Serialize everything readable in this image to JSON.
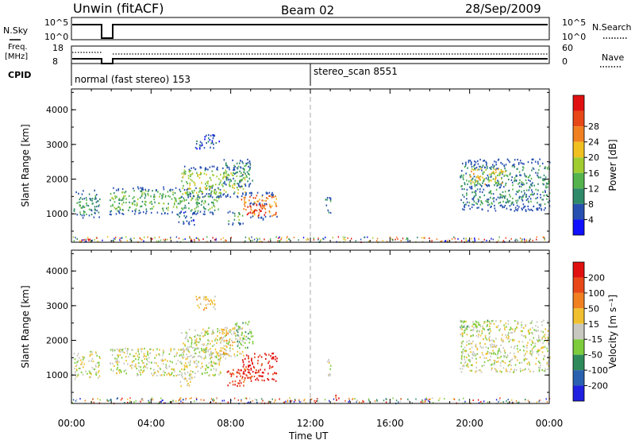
{
  "header": {
    "station": "Unwin (fitACF)",
    "beam": "Beam 02",
    "date": "28/Sep/2009"
  },
  "top_panels": {
    "nsky": {
      "label": "N.Sky",
      "ticks": [
        "10^5",
        "10^0"
      ]
    },
    "nsearch": {
      "label": "N.Search",
      "ticks": [
        "10^5",
        "10^0"
      ]
    },
    "freq": {
      "label_line1": "Freq.",
      "label_line2": "[MHz]",
      "ticks": [
        "18",
        "8"
      ]
    },
    "nave": {
      "label": "Nave",
      "ticks": [
        "60",
        "0"
      ]
    },
    "cpid": {
      "label": "CPID",
      "segments": [
        {
          "label": "normal (fast stereo) 153",
          "start_hr": 0,
          "end_hr": 12
        },
        {
          "label": "stereo_scan 8551",
          "start_hr": 12,
          "end_hr": 24
        }
      ]
    }
  },
  "chart_data": [
    {
      "type": "heatmap",
      "name": "power",
      "ylabel": "Slant Range [km]",
      "xlabel": "",
      "ylim": [
        180,
        4600
      ],
      "yticks": [
        "1000",
        "2000",
        "3000",
        "4000"
      ],
      "xlim_hr": [
        0,
        24
      ],
      "colorbar": {
        "label": "Power [dB]",
        "ticks": [
          "4",
          "8",
          "12",
          "16",
          "20",
          "24",
          "28"
        ],
        "colors": [
          "#1010ff",
          "#2850b0",
          "#2f8a6a",
          "#54b34d",
          "#a0cc30",
          "#f0c020",
          "#f08020",
          "#e84818",
          "#e01010"
        ]
      },
      "regions": [
        {
          "t0": 0.1,
          "t1": 1.4,
          "r0": 900,
          "r1": 1700,
          "level": 2
        },
        {
          "t0": 1.9,
          "t1": 7.5,
          "r0": 1000,
          "r1": 1800,
          "level": 3
        },
        {
          "t0": 5.5,
          "t1": 8.7,
          "r0": 1500,
          "r1": 2400,
          "level": 4
        },
        {
          "t0": 7.6,
          "t1": 9.1,
          "r0": 1800,
          "r1": 2600,
          "level": 2
        },
        {
          "t0": 6.2,
          "t1": 7.4,
          "r0": 2900,
          "r1": 3300,
          "level": 1
        },
        {
          "t0": 5.3,
          "t1": 6.2,
          "r0": 700,
          "r1": 1100,
          "level": 1
        },
        {
          "t0": 7.8,
          "t1": 8.6,
          "r0": 700,
          "r1": 1100,
          "level": 3
        },
        {
          "t0": 8.5,
          "t1": 10.3,
          "r0": 850,
          "r1": 1650,
          "level": 6
        },
        {
          "t0": 8.8,
          "t1": 9.8,
          "r0": 900,
          "r1": 1350,
          "level": 8
        },
        {
          "t0": 12.7,
          "t1": 13.0,
          "r0": 1000,
          "r1": 1500,
          "level": 2
        },
        {
          "t0": 19.5,
          "t1": 24.0,
          "r0": 1100,
          "r1": 2600,
          "level": 2
        },
        {
          "t0": 20.0,
          "t1": 21.8,
          "r0": 1800,
          "r1": 2400,
          "level": 5
        }
      ]
    },
    {
      "type": "heatmap",
      "name": "velocity",
      "ylabel": "Slant Range [km]",
      "xlabel": "Time UT",
      "ylim": [
        180,
        4600
      ],
      "yticks": [
        "1000",
        "2000",
        "3000",
        "4000"
      ],
      "xlim_hr": [
        0,
        24
      ],
      "xticks": [
        "00:00",
        "04:00",
        "08:00",
        "12:00",
        "16:00",
        "20:00",
        "00:00"
      ],
      "colorbar": {
        "label": "Velocity [m s⁻¹]",
        "ticks": [
          "200",
          "100",
          "50",
          "15",
          "-15",
          "-50",
          "-100",
          "-200"
        ],
        "colors": [
          "#2020e0",
          "#2a60b0",
          "#2e8a5a",
          "#7ccc3c",
          "#c8c8c0",
          "#f0c030",
          "#f08020",
          "#e84818",
          "#e01010"
        ]
      },
      "regions": [
        {
          "t0": 0.1,
          "t1": 1.4,
          "r0": 900,
          "r1": 1700,
          "level": 4
        },
        {
          "t0": 1.9,
          "t1": 7.5,
          "r0": 1000,
          "r1": 1800,
          "level": 4
        },
        {
          "t0": 5.5,
          "t1": 8.7,
          "r0": 1500,
          "r1": 2400,
          "level": 4
        },
        {
          "t0": 7.4,
          "t1": 8.2,
          "r0": 1600,
          "r1": 2400,
          "level": 5
        },
        {
          "t0": 8.2,
          "t1": 9.1,
          "r0": 1800,
          "r1": 2600,
          "level": 3
        },
        {
          "t0": 6.2,
          "t1": 7.4,
          "r0": 2900,
          "r1": 3300,
          "level": 5
        },
        {
          "t0": 5.3,
          "t1": 6.2,
          "r0": 700,
          "r1": 1100,
          "level": 4
        },
        {
          "t0": 7.8,
          "t1": 9.0,
          "r0": 700,
          "r1": 1200,
          "level": 7
        },
        {
          "t0": 8.5,
          "t1": 10.3,
          "r0": 850,
          "r1": 1650,
          "level": 8
        },
        {
          "t0": 12.7,
          "t1": 13.0,
          "r0": 1000,
          "r1": 1500,
          "level": 4
        },
        {
          "t0": 13.1,
          "t1": 13.4,
          "r0": 350,
          "r1": 500,
          "level": 7
        },
        {
          "t0": 19.5,
          "t1": 24.0,
          "r0": 1100,
          "r1": 2600,
          "level": 4
        },
        {
          "t0": 19.5,
          "t1": 21.0,
          "r0": 2300,
          "r1": 2600,
          "level": 3
        }
      ]
    }
  ]
}
